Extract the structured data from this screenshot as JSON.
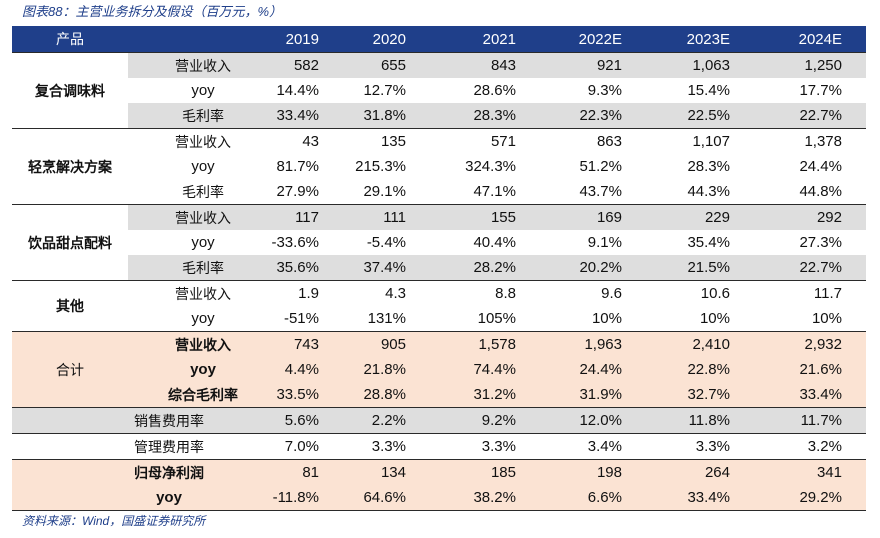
{
  "caption": "图表88：主营业务拆分及假设（百万元，%）",
  "header": {
    "product": "产品",
    "years": [
      "2019",
      "2020",
      "2021",
      "2022E",
      "2023E",
      "2024E"
    ]
  },
  "groups": [
    {
      "name": "复合调味料",
      "rows": [
        {
          "label": "营业收入",
          "values": [
            "582",
            "655",
            "843",
            "921",
            "1,063",
            "1,250"
          ]
        },
        {
          "label": "yoy",
          "values": [
            "14.4%",
            "12.7%",
            "28.6%",
            "9.3%",
            "15.4%",
            "17.7%"
          ]
        },
        {
          "label": "毛利率",
          "values": [
            "33.4%",
            "31.8%",
            "28.3%",
            "22.3%",
            "22.5%",
            "22.7%"
          ]
        }
      ]
    },
    {
      "name": "轻烹解决方案",
      "rows": [
        {
          "label": "营业收入",
          "values": [
            "43",
            "135",
            "571",
            "863",
            "1,107",
            "1,378"
          ]
        },
        {
          "label": "yoy",
          "values": [
            "81.7%",
            "215.3%",
            "324.3%",
            "51.2%",
            "28.3%",
            "24.4%"
          ]
        },
        {
          "label": "毛利率",
          "values": [
            "27.9%",
            "29.1%",
            "47.1%",
            "43.7%",
            "44.3%",
            "44.8%"
          ]
        }
      ]
    },
    {
      "name": "饮品甜点配料",
      "rows": [
        {
          "label": "营业收入",
          "values": [
            "117",
            "111",
            "155",
            "169",
            "229",
            "292"
          ]
        },
        {
          "label": "yoy",
          "values": [
            "-33.6%",
            "-5.4%",
            "40.4%",
            "9.1%",
            "35.4%",
            "27.3%"
          ]
        },
        {
          "label": "毛利率",
          "values": [
            "35.6%",
            "37.4%",
            "28.2%",
            "20.2%",
            "21.5%",
            "22.7%"
          ]
        }
      ]
    },
    {
      "name": "其他",
      "rows": [
        {
          "label": "营业收入",
          "values": [
            "1.9",
            "4.3",
            "8.8",
            "9.6",
            "10.6",
            "11.7"
          ]
        },
        {
          "label": "yoy",
          "values": [
            "-51%",
            "131%",
            "105%",
            "10%",
            "10%",
            "10%"
          ]
        }
      ]
    },
    {
      "name": "合计",
      "rows": [
        {
          "label": "营业收入",
          "values": [
            "743",
            "905",
            "1,578",
            "1,963",
            "2,410",
            "2,932"
          ]
        },
        {
          "label": "yoy",
          "values": [
            "4.4%",
            "21.8%",
            "74.4%",
            "24.4%",
            "22.8%",
            "21.6%"
          ]
        },
        {
          "label": "综合毛利率",
          "values": [
            "33.5%",
            "28.8%",
            "31.2%",
            "31.9%",
            "32.7%",
            "33.4%"
          ]
        }
      ]
    }
  ],
  "expenses": [
    {
      "label": "销售费用率",
      "values": [
        "5.6%",
        "2.2%",
        "9.2%",
        "12.0%",
        "11.8%",
        "11.7%"
      ]
    },
    {
      "label": "管理费用率",
      "values": [
        "7.0%",
        "3.3%",
        "3.3%",
        "3.4%",
        "3.3%",
        "3.2%"
      ]
    }
  ],
  "net_profit": [
    {
      "label": "归母净利润",
      "values": [
        "81",
        "134",
        "185",
        "198",
        "264",
        "341"
      ]
    },
    {
      "label": "yoy",
      "values": [
        "-11.8%",
        "64.6%",
        "38.2%",
        "6.6%",
        "33.4%",
        "29.2%"
      ]
    }
  ],
  "source": "资料来源：Wind，国盛证券研究所",
  "colors": {
    "header_bg": "#1f3f8a",
    "gray_row": "#dedede",
    "peach_row": "#fbe3d3",
    "caption": "#1f3f8a"
  }
}
